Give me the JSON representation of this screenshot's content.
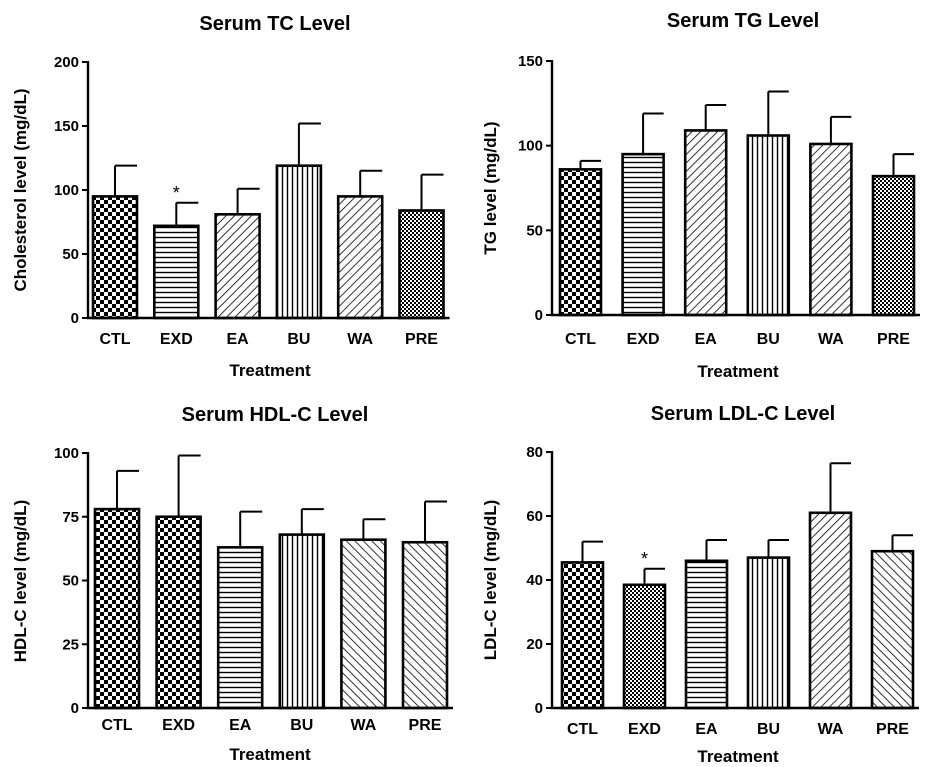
{
  "chart_data": [
    {
      "type": "bar",
      "title": "Serum TC Level",
      "xlabel": "Treatment",
      "ylabel": "Cholesterol level (mg/dL)",
      "ylim": [
        0,
        200
      ],
      "yticks": [
        0,
        50,
        100,
        150,
        200
      ],
      "categories": [
        "CTL",
        "EXD",
        "EA",
        "BU",
        "WA",
        "PRE"
      ],
      "values": [
        95,
        72,
        81,
        119,
        95,
        84
      ],
      "errors": [
        24,
        18,
        20,
        33,
        20,
        28
      ],
      "patterns": [
        "checker",
        "horizontal",
        "diag-right",
        "vertical",
        "diag-right",
        "checker-fine"
      ],
      "significance": [
        "",
        "*",
        "",
        "",
        "",
        ""
      ]
    },
    {
      "type": "bar",
      "title": "Serum TG Level",
      "xlabel": "Treatment",
      "ylabel": "TG level (mg/dL)",
      "ylim": [
        0,
        150
      ],
      "yticks": [
        0,
        50,
        100,
        150
      ],
      "categories": [
        "CTL",
        "EXD",
        "EA",
        "BU",
        "WA",
        "PRE"
      ],
      "values": [
        86,
        95,
        109,
        106,
        101,
        82
      ],
      "errors": [
        5,
        24,
        15,
        26,
        16,
        13
      ],
      "patterns": [
        "checker",
        "horizontal",
        "diag-right",
        "vertical",
        "diag-right",
        "checker-fine"
      ],
      "significance": [
        "",
        "",
        "",
        "",
        "",
        ""
      ]
    },
    {
      "type": "bar",
      "title": "Serum HDL-C Level",
      "xlabel": "Treatment",
      "ylabel": "HDL-C level (mg/dL)",
      "ylim": [
        0,
        100
      ],
      "yticks": [
        0,
        25,
        50,
        75,
        100
      ],
      "categories": [
        "CTL",
        "EXD",
        "EA",
        "BU",
        "WA",
        "PRE"
      ],
      "values": [
        78,
        75,
        63,
        68,
        66,
        65
      ],
      "errors": [
        15,
        24,
        14,
        10,
        8,
        16
      ],
      "patterns": [
        "checker",
        "checker",
        "horizontal",
        "vertical",
        "diag-left",
        "diag-left"
      ],
      "significance": [
        "",
        "",
        "",
        "",
        "",
        ""
      ]
    },
    {
      "type": "bar",
      "title": "Serum LDL-C Level",
      "xlabel": "Treatment",
      "ylabel": "LDL-C level (mg/dL)",
      "ylim": [
        0,
        80
      ],
      "yticks": [
        0,
        20,
        40,
        60,
        80
      ],
      "categories": [
        "CTL",
        "EXD",
        "EA",
        "BU",
        "WA",
        "PRE"
      ],
      "values": [
        45.5,
        38.5,
        46,
        47,
        61,
        49
      ],
      "errors": [
        6.5,
        5,
        6.5,
        5.5,
        15.5,
        5
      ],
      "patterns": [
        "checker",
        "checker-fine",
        "horizontal",
        "vertical",
        "diag-right",
        "diag-left"
      ],
      "significance": [
        "",
        "*",
        "",
        "",
        "",
        ""
      ]
    }
  ]
}
